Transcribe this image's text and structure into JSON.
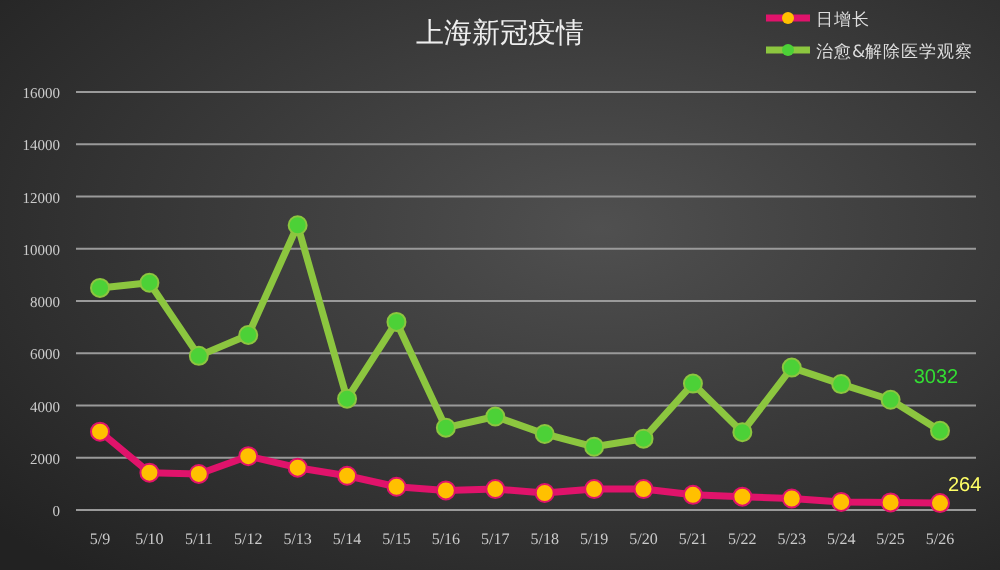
{
  "chart_data": {
    "type": "line",
    "title": "上海新冠疫情",
    "categories": [
      "5/9",
      "5/10",
      "5/11",
      "5/12",
      "5/13",
      "5/14",
      "5/15",
      "5/16",
      "5/17",
      "5/18",
      "5/19",
      "5/20",
      "5/21",
      "5/22",
      "5/23",
      "5/24",
      "5/25",
      "5/26"
    ],
    "series": [
      {
        "name": "日增长",
        "color": "#e0136b",
        "values": [
          3000,
          1430,
          1380,
          2060,
          1620,
          1310,
          890,
          750,
          800,
          650,
          800,
          800,
          580,
          510,
          440,
          310,
          290,
          264
        ],
        "value_labels": [
          null,
          null,
          null,
          null,
          null,
          null,
          null,
          null,
          null,
          null,
          null,
          null,
          null,
          null,
          null,
          null,
          null,
          "264"
        ]
      },
      {
        "name": "治愈&解除医学观察",
        "color": "#8cc63f",
        "values": [
          8500,
          8700,
          5900,
          6700,
          10900,
          4260,
          7200,
          3150,
          3580,
          2910,
          2420,
          2730,
          4840,
          2980,
          5450,
          4820,
          4220,
          3032
        ],
        "value_labels": [
          null,
          null,
          null,
          null,
          null,
          null,
          null,
          null,
          null,
          null,
          null,
          null,
          null,
          null,
          null,
          null,
          null,
          "3032"
        ]
      }
    ],
    "ylim": [
      0,
      16000
    ],
    "yticks": [
      0,
      2000,
      4000,
      6000,
      8000,
      10000,
      12000,
      14000,
      16000
    ],
    "grid": "y",
    "legend": "top right",
    "marker": "circle",
    "line_style": "solid"
  }
}
